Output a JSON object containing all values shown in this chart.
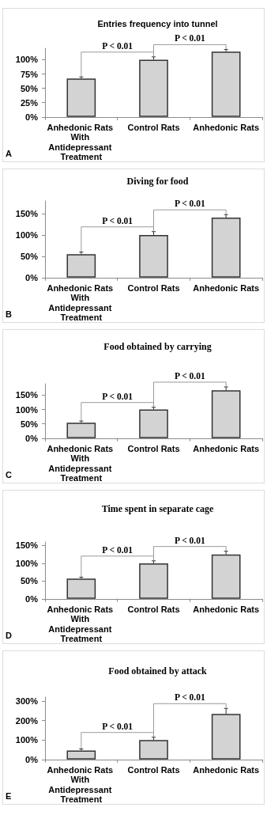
{
  "chart_data": [
    {
      "type": "bar",
      "title": "Entries frequency into tunnel",
      "categories": [
        "Anhedonic Rats With Antidepressant Treatment",
        "Control Rats",
        "Anhedonic Rats"
      ],
      "values": [
        67,
        100,
        114
      ],
      "errors": [
        [
          67,
          70
        ],
        [
          100,
          105
        ],
        [
          114,
          118
        ]
      ],
      "color": "#d3d3d3",
      "ylim": [
        0,
        120
      ],
      "yticks": [
        {
          "value": 0,
          "label": "0%"
        },
        {
          "value": 25,
          "label": "25%"
        },
        {
          "value": 50,
          "label": "50%"
        },
        {
          "value": 75,
          "label": "75%"
        },
        {
          "value": 100,
          "label": "100%"
        }
      ],
      "annotations": [
        "P < 0.01",
        "P < 0.01",
        "A"
      ]
    },
    {
      "type": "bar",
      "title": "Diving for food",
      "categories": [
        "Anhedonic Rats With Antidepressant Treatment",
        "Control Rats",
        "Anhedonic Rats"
      ],
      "values": [
        55,
        100,
        141
      ],
      "errors": [
        [
          55,
          60
        ],
        [
          100,
          108
        ],
        [
          141,
          148
        ]
      ],
      "color": "#d3d3d3",
      "ylim": [
        0,
        180
      ],
      "yticks": [
        {
          "value": 0,
          "label": "0%"
        },
        {
          "value": 50,
          "label": "50%"
        },
        {
          "value": 100,
          "label": "100%"
        },
        {
          "value": 150,
          "label": "150%"
        }
      ],
      "annotations": [
        "P < 0.01",
        "P < 0.01",
        "B"
      ]
    },
    {
      "type": "bar",
      "title": "Food obtained by carrying",
      "categories": [
        "Anhedonic Rats With Antidepressant Treatment",
        "Control Rats",
        "Anhedonic Rats"
      ],
      "values": [
        54,
        100,
        167
      ],
      "errors": [
        [
          54,
          60
        ],
        [
          100,
          108
        ],
        [
          167,
          179
        ]
      ],
      "color": "#d3d3d3",
      "ylim": [
        0,
        190
      ],
      "yticks": [
        {
          "value": 0,
          "label": "0%"
        },
        {
          "value": 50,
          "label": "50%"
        },
        {
          "value": 100,
          "label": "100%"
        },
        {
          "value": 150,
          "label": "150%"
        }
      ],
      "annotations": [
        "P < 0.01",
        "P < 0.01",
        "C"
      ]
    },
    {
      "type": "bar",
      "title": "Time spent in separate cage",
      "categories": [
        "Anhedonic Rats With Antidepressant Treatment",
        "Control Rats",
        "Anhedonic Rats"
      ],
      "values": [
        57,
        100,
        125
      ],
      "errors": [
        [
          57,
          61
        ],
        [
          100,
          107
        ],
        [
          125,
          134
        ]
      ],
      "color": "#d3d3d3",
      "ylim": [
        0,
        160
      ],
      "yticks": [
        {
          "value": 0,
          "label": "0%"
        },
        {
          "value": 50,
          "label": "50%"
        },
        {
          "value": 100,
          "label": "100%"
        },
        {
          "value": 150,
          "label": "150%"
        }
      ],
      "annotations": [
        "P < 0.01",
        "P < 0.01",
        "D"
      ]
    },
    {
      "type": "bar",
      "title": "Food obtained by attack",
      "categories": [
        "Anhedonic Rats With Antidepressant Treatment",
        "Control Rats",
        "Anhedonic Rats"
      ],
      "values": [
        46,
        100,
        234
      ],
      "errors": [
        [
          46,
          54
        ],
        [
          100,
          114
        ],
        [
          234,
          262
        ]
      ],
      "color": "#d3d3d3",
      "ylim": [
        0,
        320
      ],
      "yticks": [
        {
          "value": 0,
          "label": "0%"
        },
        {
          "value": 100,
          "label": "100%"
        },
        {
          "value": 200,
          "label": "200%"
        },
        {
          "value": 300,
          "label": "300%"
        }
      ],
      "annotations": [
        "P < 0.01",
        "P < 0.01",
        "E"
      ]
    }
  ]
}
